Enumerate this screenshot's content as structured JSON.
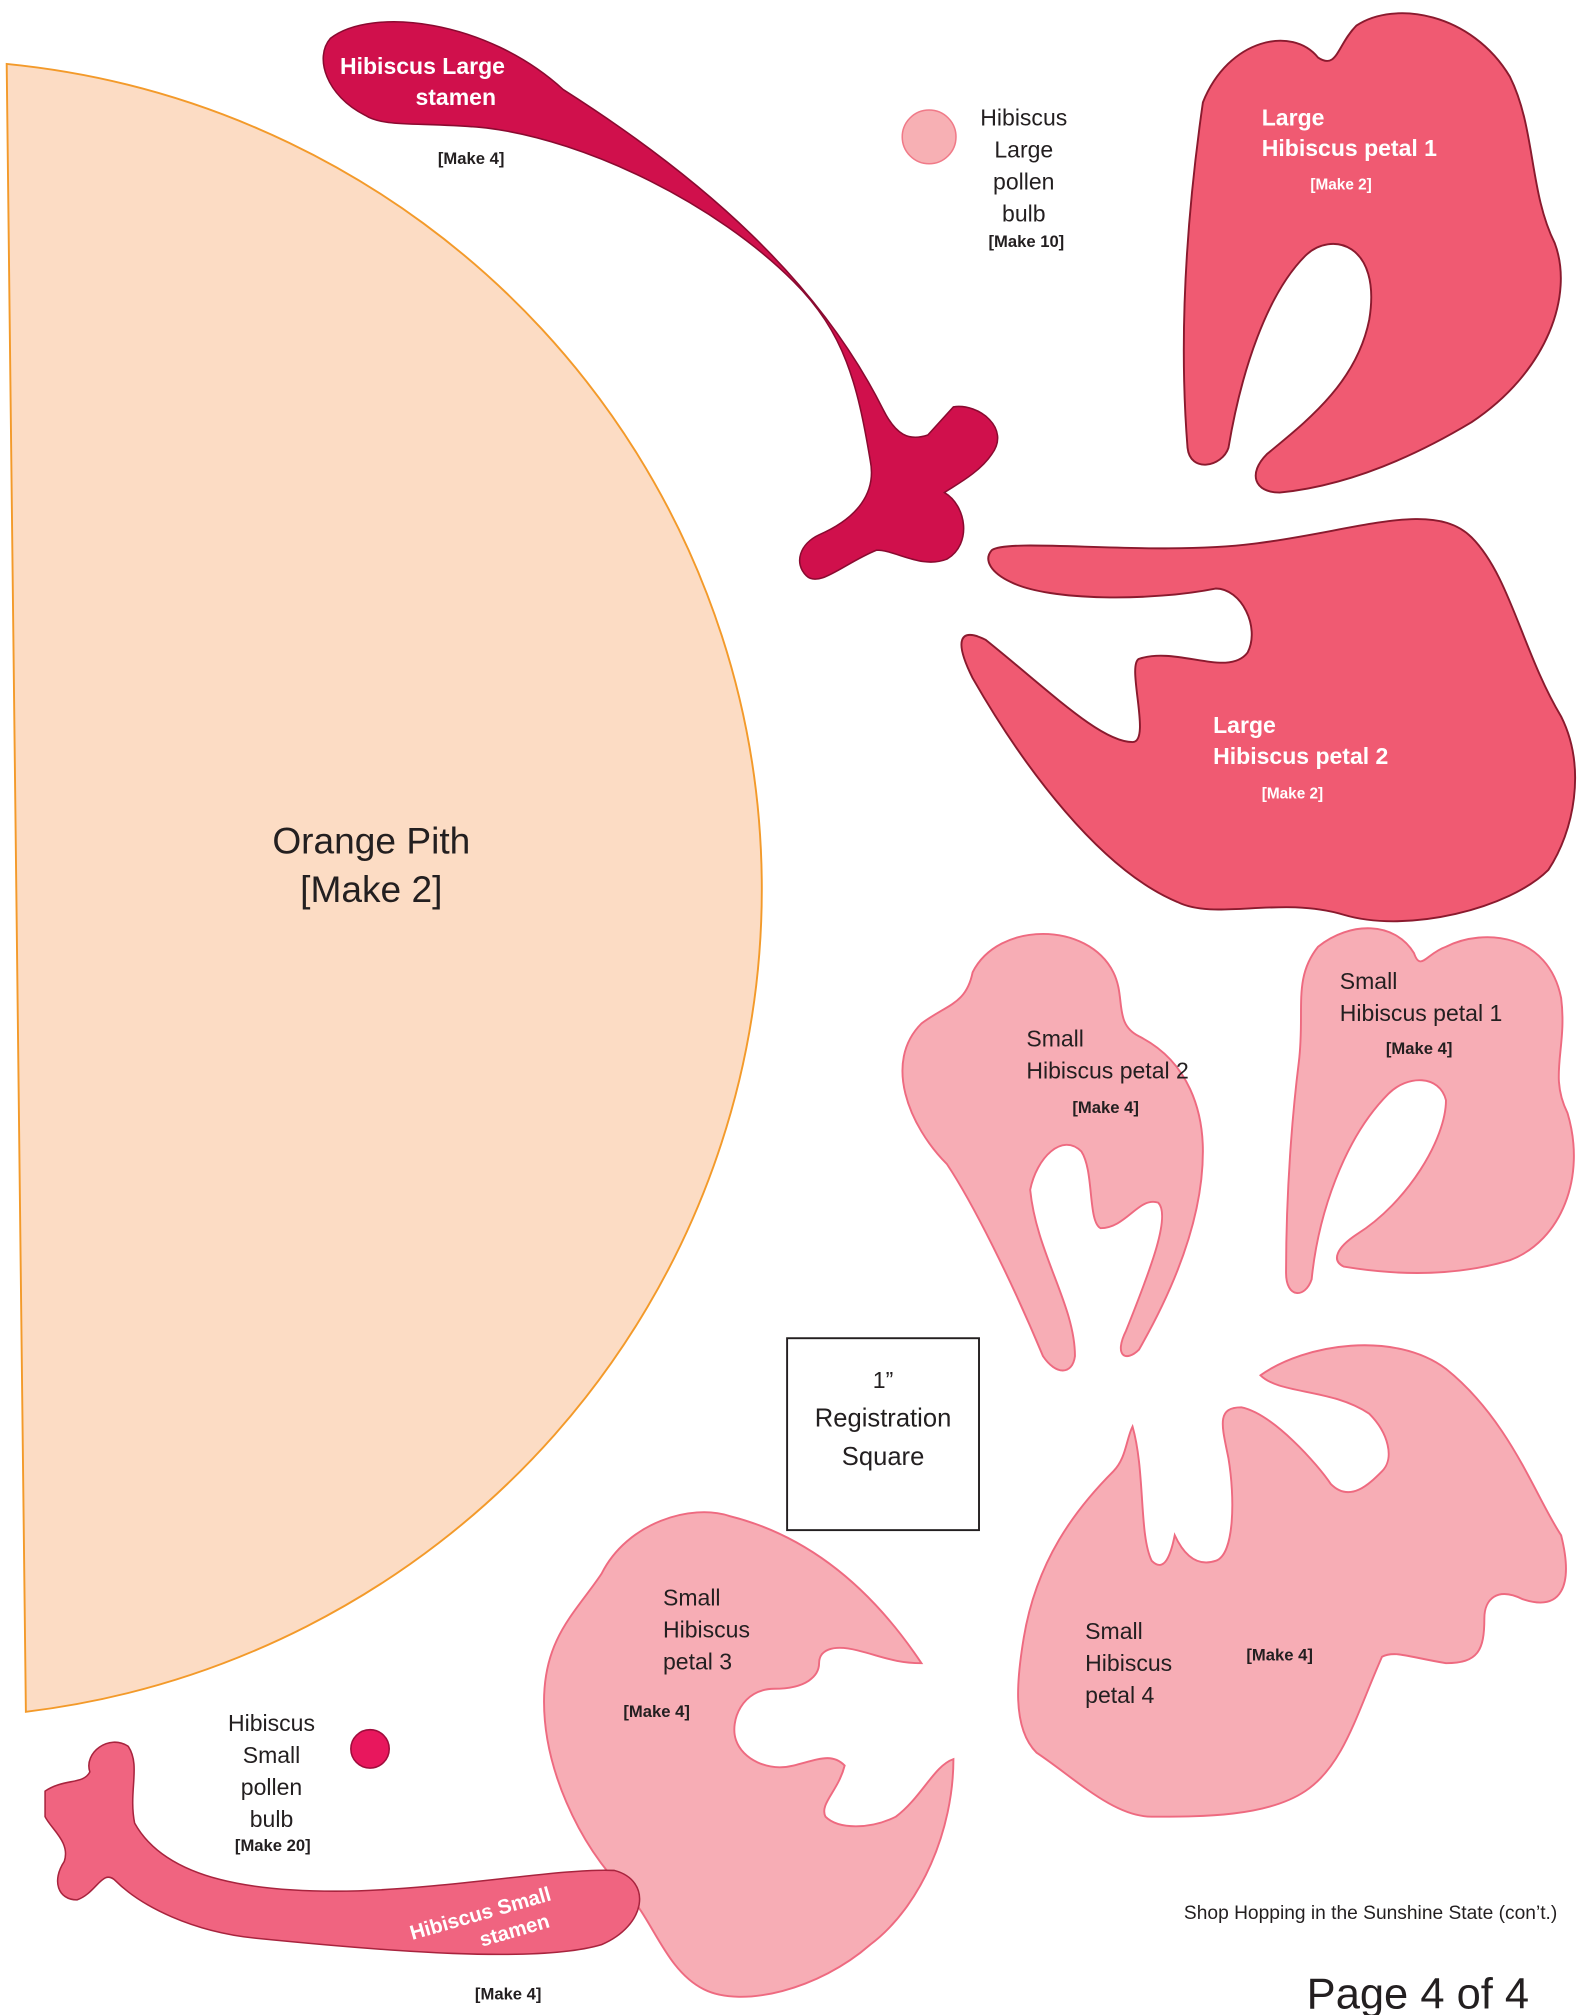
{
  "pieces": {
    "large_stamen": {
      "label": [
        "Hibiscus Large",
        "stamen"
      ],
      "count": "[Make 4]"
    },
    "large_pollen_bulb": {
      "label": [
        "Hibiscus",
        "Large",
        "pollen",
        "bulb"
      ],
      "count": "[Make 10]"
    },
    "large_petal_1": {
      "label": [
        "Large",
        "Hibiscus petal 1"
      ],
      "count": "[Make 2]"
    },
    "large_petal_2": {
      "label": [
        "Large",
        "Hibiscus petal 2"
      ],
      "count": "[Make 2]"
    },
    "orange_pith": {
      "label": [
        "Orange Pith"
      ],
      "count": "[Make 2]"
    },
    "small_petal_2": {
      "label": [
        "Small",
        "Hibiscus petal 2"
      ],
      "count": "[Make 4]"
    },
    "small_petal_1": {
      "label": [
        "Small",
        "Hibiscus petal 1"
      ],
      "count": "[Make 4]"
    },
    "small_petal_3": {
      "label": [
        "Small",
        "Hibiscus",
        "petal 3"
      ],
      "count": "[Make 4]"
    },
    "small_petal_4": {
      "label": [
        "Small",
        "Hibiscus",
        "petal 4"
      ],
      "count": "[Make 4]"
    },
    "small_pollen_bulb": {
      "label": [
        "Hibiscus",
        "Small",
        "pollen",
        "bulb"
      ],
      "count": "[Make 20]"
    },
    "small_stamen": {
      "label": [
        "Hibiscus Small",
        "stamen"
      ],
      "count": "[Make 4]"
    }
  },
  "registration_square": {
    "label": [
      "1”",
      "Registration",
      "Square"
    ]
  },
  "footer": {
    "subtitle": "Shop Hopping in the Sunshine State (con’t.)",
    "page": "Page 4 of 4"
  }
}
